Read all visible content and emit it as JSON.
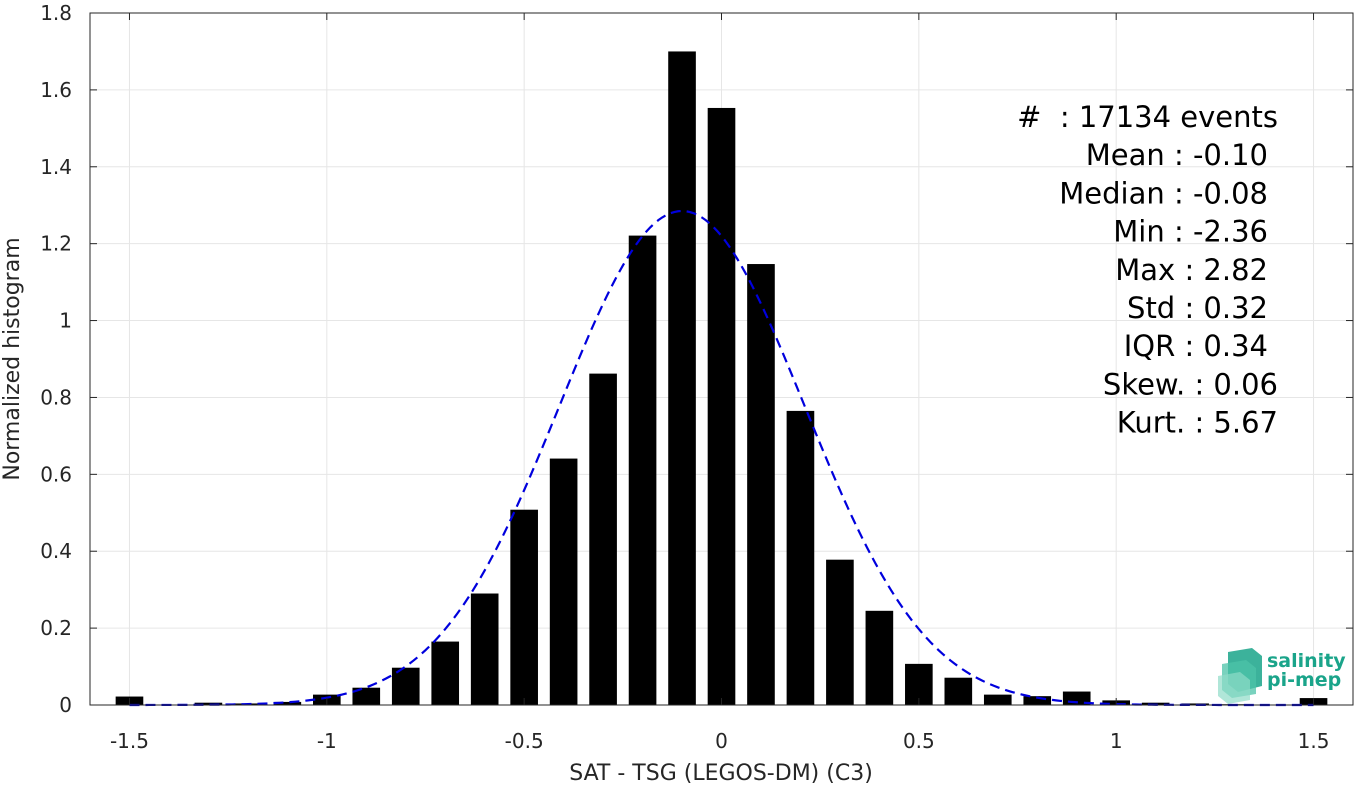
{
  "chart_data": {
    "type": "bar",
    "xlabel": "SAT - TSG (LEGOS-DM) (C3)",
    "ylabel": "Normalized histogram",
    "xlim": [
      -1.6,
      1.6
    ],
    "ylim": [
      0,
      1.8
    ],
    "x_ticks": [
      -1.5,
      -1,
      -0.5,
      0,
      0.5,
      1,
      1.5
    ],
    "x_tick_labels": [
      "-1.5",
      "-1",
      "-0.5",
      "0",
      "0.5",
      "1",
      "1.5"
    ],
    "y_ticks": [
      0,
      0.2,
      0.4,
      0.6,
      0.8,
      1,
      1.2,
      1.4,
      1.6,
      1.8
    ],
    "y_tick_labels": [
      "0",
      "0.2",
      "0.4",
      "0.6",
      "0.8",
      "1",
      "1.2",
      "1.4",
      "1.6",
      "1.8"
    ],
    "grid": true,
    "bar_width": 0.07,
    "bar_color": "#000000",
    "bins": [
      -1.5,
      -1.3,
      -1.2,
      -1.1,
      -1.0,
      -0.9,
      -0.8,
      -0.7,
      -0.6,
      -0.5,
      -0.4,
      -0.3,
      -0.2,
      -0.1,
      0.0,
      0.1,
      0.2,
      0.3,
      0.4,
      0.5,
      0.6,
      0.7,
      0.8,
      0.9,
      1.0,
      1.1,
      1.2,
      1.3,
      1.5
    ],
    "values": [
      0.022,
      0.006,
      0.004,
      0.008,
      0.027,
      0.045,
      0.097,
      0.165,
      0.29,
      0.508,
      0.641,
      0.862,
      1.221,
      1.7,
      1.553,
      1.147,
      0.765,
      0.378,
      0.245,
      0.107,
      0.071,
      0.027,
      0.023,
      0.035,
      0.012,
      0.006,
      0.004,
      0.002,
      0.018
    ],
    "fit": {
      "type": "gaussian",
      "style": "dashed",
      "color": "#0000dd",
      "mean": -0.1,
      "peak": 1.285,
      "sigma": 0.31
    },
    "stats": [
      {
        "label": "#",
        "value": ": 17134 events"
      },
      {
        "label": "Mean",
        "value": ": -0.10"
      },
      {
        "label": "Median",
        "value": ": -0.08"
      },
      {
        "label": "Min",
        "value": ": -2.36"
      },
      {
        "label": "Max",
        "value": ": 2.82"
      },
      {
        "label": "Std",
        "value": ": 0.32"
      },
      {
        "label": "IQR",
        "value": ": 0.34"
      },
      {
        "label": "Skew.",
        "value": ": 0.06"
      },
      {
        "label": "Kurt.",
        "value": ": 5.67"
      }
    ]
  },
  "logo": {
    "line1": "salinity",
    "line2": "pi-mep",
    "color": "#1aa48a"
  }
}
